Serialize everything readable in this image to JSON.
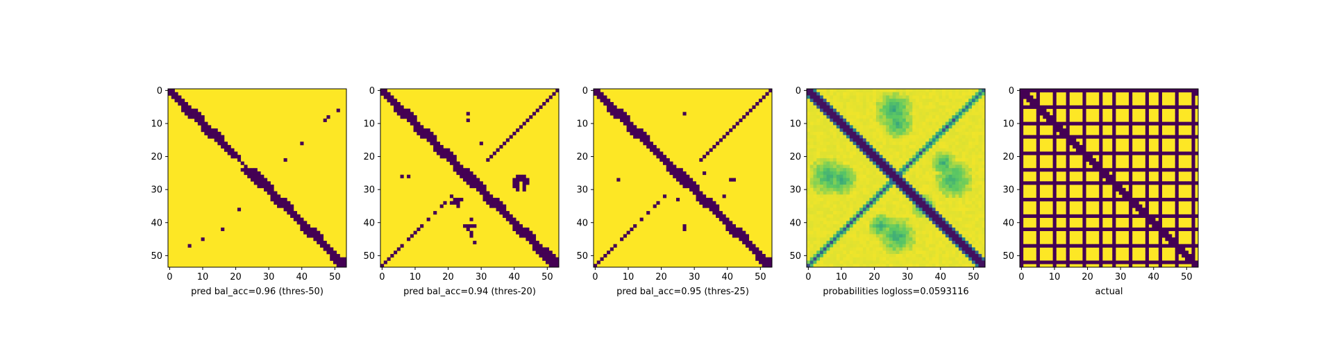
{
  "figure": {
    "background": "#ffffff"
  },
  "chart_data": [
    {
      "type": "heatmap",
      "title": "",
      "xlabel": "pred bal_acc=0.96 (thres-50)",
      "ylabel": "",
      "xlim": [
        0,
        53
      ],
      "ylim": [
        53,
        0
      ],
      "x_ticks": [
        "0",
        "10",
        "20",
        "30",
        "40",
        "50"
      ],
      "y_ticks": [
        "0",
        "10",
        "20",
        "30",
        "40",
        "50"
      ],
      "colormap": "viridis",
      "binary": true,
      "band": {
        "halfwidth": 1.6,
        "wobble": 0.7
      },
      "anti_diagonal": false,
      "blobs": [],
      "dots": [
        [
          47,
          6
        ],
        [
          45,
          10
        ],
        [
          42,
          16
        ],
        [
          36,
          21
        ],
        [
          21,
          35
        ],
        [
          16,
          40
        ],
        [
          9,
          47
        ],
        [
          8,
          48
        ],
        [
          6,
          51
        ]
      ]
    },
    {
      "type": "heatmap",
      "title": "",
      "xlabel": "pred bal_acc=0.94 (thres-20)",
      "ylabel": "",
      "xlim": [
        0,
        53
      ],
      "ylim": [
        53,
        0
      ],
      "x_ticks": [
        "0",
        "10",
        "20",
        "30",
        "40",
        "50"
      ],
      "y_ticks": [
        "0",
        "10",
        "20",
        "30",
        "40",
        "50"
      ],
      "colormap": "viridis",
      "binary": true,
      "band": {
        "halfwidth": 1.9,
        "wobble": 0.6
      },
      "anti_diagonal": true,
      "anti_gap": [
        8,
        44
      ],
      "blobs": [
        [
          34,
          23,
          2.2
        ],
        [
          41,
          27,
          2.0
        ],
        [
          28,
          42,
          2.3
        ]
      ],
      "dots": [
        [
          26,
          6
        ],
        [
          26,
          8
        ],
        [
          7,
          26
        ],
        [
          9,
          26
        ],
        [
          16,
          30
        ],
        [
          44,
          27
        ],
        [
          46,
          28
        ]
      ]
    },
    {
      "type": "heatmap",
      "title": "",
      "xlabel": "pred bal_acc=0.95 (thres-25)",
      "ylabel": "",
      "xlim": [
        0,
        53
      ],
      "ylim": [
        53,
        0
      ],
      "x_ticks": [
        "0",
        "10",
        "20",
        "30",
        "40",
        "50"
      ],
      "y_ticks": [
        "0",
        "10",
        "20",
        "30",
        "40",
        "50"
      ],
      "colormap": "viridis",
      "binary": true,
      "band": {
        "halfwidth": 1.7,
        "wobble": 0.6
      },
      "anti_diagonal": true,
      "anti_gap": [
        10,
        42
      ],
      "blobs": [],
      "dots": [
        [
          27,
          7
        ],
        [
          7,
          27
        ],
        [
          41,
          27
        ],
        [
          42,
          27
        ],
        [
          27,
          41
        ],
        [
          27,
          42
        ],
        [
          33,
          25
        ],
        [
          25,
          33
        ],
        [
          32,
          39
        ]
      ]
    },
    {
      "type": "heatmap",
      "title": "",
      "xlabel": "probabilities logloss=0.0593116",
      "ylabel": "",
      "xlim": [
        0,
        53
      ],
      "ylim": [
        53,
        0
      ],
      "x_ticks": [
        "0",
        "10",
        "20",
        "30",
        "40",
        "50"
      ],
      "y_ticks": [
        "0",
        "10",
        "20",
        "30",
        "40",
        "50"
      ],
      "colormap": "viridis",
      "binary": false,
      "band": {
        "halfwidth": 1.7,
        "wobble": 0
      },
      "anti_diagonal": true,
      "regions": [
        [
          6,
          26,
          6
        ],
        [
          26,
          6,
          6
        ],
        [
          27,
          10,
          5
        ],
        [
          10,
          27,
          5
        ],
        [
          44,
          27,
          6
        ],
        [
          27,
          44,
          6
        ],
        [
          41,
          22,
          4
        ],
        [
          22,
          41,
          4
        ],
        [
          35,
          35,
          4
        ]
      ]
    },
    {
      "type": "heatmap",
      "title": "",
      "xlabel": "actual",
      "ylabel": "",
      "xlim": [
        0,
        53
      ],
      "ylim": [
        53,
        0
      ],
      "x_ticks": [
        "0",
        "10",
        "20",
        "30",
        "40",
        "50"
      ],
      "y_ticks": [
        "0",
        "10",
        "20",
        "30",
        "40",
        "50"
      ],
      "colormap": "viridis",
      "binary": true,
      "grid_lines": [
        0,
        5,
        10,
        14,
        19,
        24,
        28,
        33,
        38,
        42,
        47,
        52
      ],
      "band": {
        "halfwidth": 1.2,
        "wobble": 0
      },
      "anti_diagonal": false,
      "blobs": [],
      "dots": [
        [
          1,
          52
        ],
        [
          1,
          53
        ],
        [
          53,
          0
        ]
      ]
    }
  ]
}
